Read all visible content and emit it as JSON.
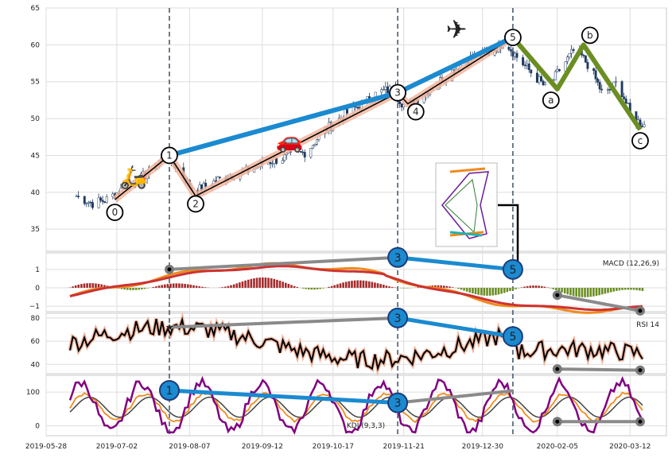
{
  "chart_data": [
    {
      "type": "candlestick",
      "panel": "price",
      "ylim": [
        32,
        65
      ],
      "yticks": [
        35,
        40,
        45,
        50,
        55,
        60,
        65
      ],
      "grid": true,
      "ohlc_approx_close": [
        [
          "2019-06-12",
          39.5
        ],
        [
          "2019-06-20",
          38.5
        ],
        [
          "2019-06-27",
          39.0
        ],
        [
          "2019-07-05",
          40.5
        ],
        [
          "2019-07-12",
          41.5
        ],
        [
          "2019-07-19",
          43.0
        ],
        [
          "2019-07-26",
          45.0
        ],
        [
          "2019-08-02",
          43.0
        ],
        [
          "2019-08-09",
          40.0
        ],
        [
          "2019-08-16",
          41.0
        ],
        [
          "2019-08-23",
          42.0
        ],
        [
          "2019-08-30",
          42.5
        ],
        [
          "2019-09-06",
          43.0
        ],
        [
          "2019-09-13",
          44.0
        ],
        [
          "2019-09-20",
          44.5
        ],
        [
          "2019-09-27",
          45.0
        ],
        [
          "2019-10-04",
          45.5
        ],
        [
          "2019-10-11",
          48.0
        ],
        [
          "2019-10-18",
          49.5
        ],
        [
          "2019-10-25",
          51.0
        ],
        [
          "2019-11-01",
          52.0
        ],
        [
          "2019-11-08",
          53.5
        ],
        [
          "2019-11-15",
          54.0
        ],
        [
          "2019-11-22",
          51.5
        ],
        [
          "2019-11-29",
          53.0
        ],
        [
          "2019-12-06",
          54.5
        ],
        [
          "2019-12-13",
          56.0
        ],
        [
          "2019-12-20",
          57.5
        ],
        [
          "2019-12-27",
          58.5
        ],
        [
          "2020-01-03",
          59.0
        ],
        [
          "2020-01-10",
          60.5
        ],
        [
          "2020-01-17",
          58.0
        ],
        [
          "2020-01-24",
          56.0
        ],
        [
          "2020-01-31",
          54.0
        ],
        [
          "2020-02-07",
          57.0
        ],
        [
          "2020-02-14",
          59.5
        ],
        [
          "2020-02-21",
          57.0
        ],
        [
          "2020-02-28",
          53.0
        ],
        [
          "2020-03-06",
          55.0
        ],
        [
          "2020-03-13",
          50.0
        ],
        [
          "2020-03-20",
          49.0
        ]
      ],
      "elliott_wave": {
        "labels": [
          "0",
          "1",
          "2",
          "3",
          "4",
          "5",
          "a",
          "b",
          "c"
        ],
        "points": [
          [
            "2019-07-01",
            39.0
          ],
          [
            "2019-07-28",
            45.0
          ],
          [
            "2019-08-10",
            39.5
          ],
          [
            "2019-11-18",
            53.5
          ],
          [
            "2019-11-23",
            52.0
          ],
          [
            "2020-01-14",
            61.0
          ],
          [
            "2020-02-05",
            54.0
          ],
          [
            "2020-02-18",
            60.0
          ],
          [
            "2020-03-17",
            48.5
          ]
        ]
      },
      "vlines": [
        "2019-07-28",
        "2019-11-18",
        "2020-01-14"
      ]
    },
    {
      "type": "line",
      "panel": "macd",
      "label": "MACD (12,26,9)",
      "ylim": [
        -1.3,
        1.9
      ],
      "yticks": [
        1,
        0,
        -1
      ],
      "ytick_labels": [
        "1",
        "0",
        "−1"
      ]
    },
    {
      "type": "line",
      "panel": "rsi",
      "label": "RSI 14",
      "ylim": [
        32,
        84
      ],
      "yticks": [
        80,
        60,
        40
      ]
    },
    {
      "type": "line",
      "panel": "kdj",
      "label": "KDJ (9,3,3)",
      "ylim": [
        -30,
        150
      ],
      "yticks": [
        100,
        0
      ]
    }
  ],
  "xaxis": {
    "start": "2019-05-28",
    "end": "2020-03-30",
    "tick_labels": [
      "2019-05-28",
      "2019-07-02",
      "2019-08-07",
      "2019-09-12",
      "2019-10-17",
      "2019-11-21",
      "2019-12-30",
      "2020-02-05",
      "2020-03-12"
    ]
  },
  "colors": {
    "up_candle": "#ffffff",
    "down_candle": "#1f3a5f",
    "wave_line": "#000000",
    "wave_halo": "#f2b7a0",
    "trend_blue": "#1b8ad0",
    "correction_green": "#6b8e23",
    "divergence_gray": "#8a8a8a",
    "macd_orange": "#f08a1c",
    "macd_signal_red": "#cc3333",
    "macd_hist_red": "#a52a2a",
    "macd_hist_green": "#6b8e23",
    "kdj_k": "#f08a1c",
    "kdj_j": "#800080",
    "kdj_d": "#444444",
    "vline": "#4a5a70"
  },
  "icons": [
    "scooter-icon",
    "car-icon",
    "airplane-icon",
    "inset-pattern-icon"
  ]
}
